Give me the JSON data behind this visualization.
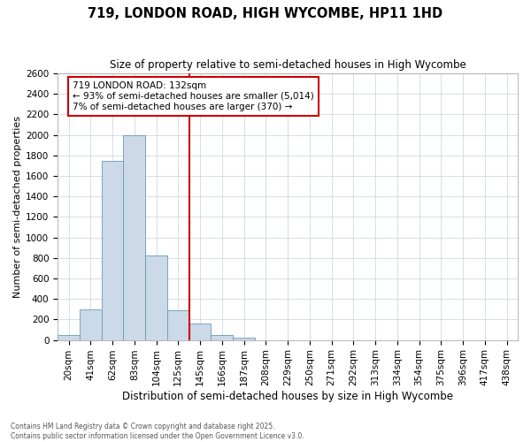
{
  "title": "719, LONDON ROAD, HIGH WYCOMBE, HP11 1HD",
  "subtitle": "Size of property relative to semi-detached houses in High Wycombe",
  "xlabel": "Distribution of semi-detached houses by size in High Wycombe",
  "ylabel": "Number of semi-detached properties",
  "categories": [
    "20sqm",
    "41sqm",
    "62sqm",
    "83sqm",
    "104sqm",
    "125sqm",
    "145sqm",
    "166sqm",
    "187sqm",
    "208sqm",
    "229sqm",
    "250sqm",
    "271sqm",
    "292sqm",
    "313sqm",
    "334sqm",
    "354sqm",
    "375sqm",
    "396sqm",
    "417sqm",
    "438sqm"
  ],
  "values": [
    50,
    300,
    1750,
    2000,
    820,
    290,
    160,
    45,
    20,
    0,
    0,
    0,
    0,
    0,
    0,
    0,
    0,
    0,
    0,
    0,
    0
  ],
  "bar_color": "#ccd9e8",
  "bar_edge_color": "#6699bb",
  "grid_color": "#d0d8e0",
  "background_color": "#ffffff",
  "red_line_x": 5.5,
  "annotation_title": "719 LONDON ROAD: 132sqm",
  "annotation_line1": "← 93% of semi-detached houses are smaller (5,014)",
  "annotation_line2": "7% of semi-detached houses are larger (370) →",
  "annotation_box_color": "#ffffff",
  "annotation_border_color": "#cc0000",
  "red_line_color": "#cc0000",
  "ylim": [
    0,
    2600
  ],
  "yticks": [
    0,
    200,
    400,
    600,
    800,
    1000,
    1200,
    1400,
    1600,
    1800,
    2000,
    2200,
    2400,
    2600
  ],
  "footer_line1": "Contains HM Land Registry data © Crown copyright and database right 2025.",
  "footer_line2": "Contains public sector information licensed under the Open Government Licence v3.0.",
  "title_fontsize": 10.5,
  "subtitle_fontsize": 8.5,
  "xlabel_fontsize": 8.5,
  "ylabel_fontsize": 8,
  "tick_fontsize": 7.5,
  "annot_fontsize": 7.5,
  "footer_fontsize": 5.5
}
